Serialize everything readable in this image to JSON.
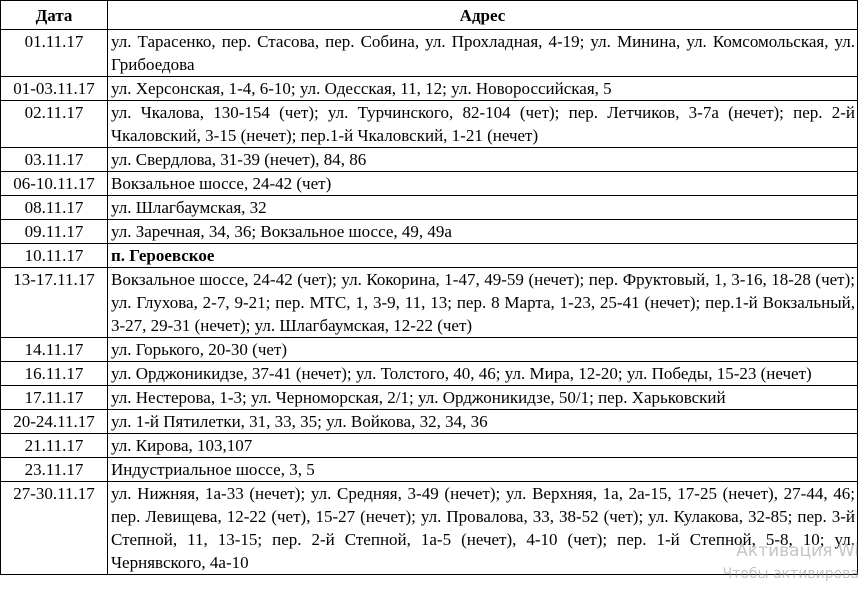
{
  "table": {
    "header": [
      "Дата",
      "Адрес"
    ],
    "rows": [
      {
        "date": "01.11.17",
        "address": "ул. Тарасенко, пер. Стасова, пер. Собина, ул. Прохладная, 4-19; ул. Минина, ул. Комсомольская, ул. Грибоедова"
      },
      {
        "date": "01-03.11.17",
        "address": "ул. Херсонская, 1-4, 6-10; ул. Одесская, 11, 12; ул. Новороссийская, 5"
      },
      {
        "date": "02.11.17",
        "address": "ул. Чкалова, 130-154 (чет); ул. Турчинского, 82-104 (чет); пер. Летчиков, 3-7а (нечет); пер. 2-й Чкаловский, 3-15 (нечет); пер.1-й Чкаловский, 1-21 (нечет)"
      },
      {
        "date": "03.11.17",
        "address": "ул. Свердлова, 31-39 (нечет), 84, 86"
      },
      {
        "date": "06-10.11.17",
        "address": "Вокзальное шоссе, 24-42 (чет)"
      },
      {
        "date": "08.11.17",
        "address": "ул. Шлагбаумская, 32"
      },
      {
        "date": "09.11.17",
        "address": "ул. Заречная, 34, 36; Вокзальное шоссе, 49, 49а"
      },
      {
        "date": "10.11.17",
        "address": "п. Героевское",
        "bold": true
      },
      {
        "date": "13-17.11.17",
        "address": "Вокзальное шоссе, 24-42 (чет); ул. Кокорина, 1-47, 49-59 (нечет); пер. Фруктовый, 1, 3-16, 18-28 (чет); ул. Глухова, 2-7, 9-21; пер. МТС, 1, 3-9, 11, 13; пер. 8 Марта, 1-23, 25-41 (нечет); пер.1-й Вокзальный, 3-27, 29-31 (нечет); ул. Шлагбаумская, 12-22 (чет)"
      },
      {
        "date": "14.11.17",
        "address": "ул. Горького, 20-30 (чет)"
      },
      {
        "date": "16.11.17",
        "address": "ул. Орджоникидзе, 37-41 (нечет); ул. Толстого, 40, 46; ул. Мира, 12-20; ул. Победы, 15-23 (нечет)"
      },
      {
        "date": "17.11.17",
        "address": "ул. Нестерова, 1-3; ул. Черноморская, 2/1; ул. Орджоникидзе, 50/1; пер. Харьковский"
      },
      {
        "date": "20-24.11.17",
        "address": "ул. 1-й Пятилетки, 31, 33, 35; ул. Войкова, 32, 34, 36"
      },
      {
        "date": "21.11.17",
        "address": "ул. Кирова, 103,107"
      },
      {
        "date": "23.11.17",
        "address": "Индустриальное шоссе, 3, 5"
      },
      {
        "date": "27-30.11.17",
        "address": "ул. Нижняя, 1а-33 (нечет); ул. Средняя, 3-49 (нечет); ул. Верхняя, 1а, 2а-15, 17-25 (нечет), 27-44, 46; пер. Левищева, 12-22 (чет), 15-27 (нечет); ул. Провалова, 33, 38-52 (чет); ул. Кулакова, 32-85; пер. 3-й Степной, 11, 13-15; пер. 2-й Степной, 1а-5 (нечет), 4-10 (чет); пер. 1-й Степной, 5-8, 10; ул. Чернявского, 4а-10"
      }
    ]
  },
  "watermark": {
    "line1": "Активация Wi",
    "line2": "Чтобы активирова"
  }
}
